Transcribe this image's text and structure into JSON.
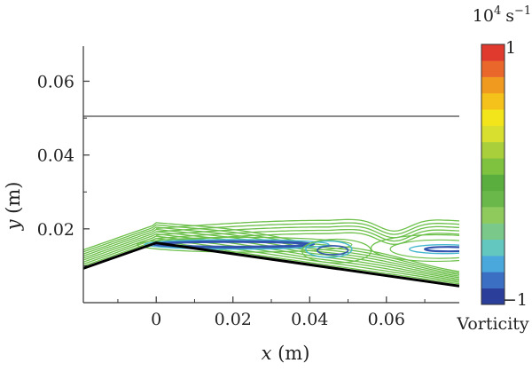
{
  "chart_data": {
    "type": "contour",
    "xlabel_var": "x",
    "xlabel_unit": " (m)",
    "ylabel_var": "y",
    "ylabel_unit": " (m)",
    "xlim": [
      -0.019,
      0.079
    ],
    "ylim": [
      0.0,
      0.0695
    ],
    "x_ticks": [
      0,
      0.02,
      0.04,
      0.06
    ],
    "x_tick_labels": [
      "0",
      "0.02",
      "0.04",
      "0.06"
    ],
    "y_ticks": [
      0.02,
      0.04,
      0.06
    ],
    "y_tick_labels": [
      "0.02",
      "0.04",
      "0.06"
    ],
    "boundary_y": 0.0505,
    "wedge_surface": [
      [
        -0.019,
        0.0093
      ],
      [
        0,
        0.0162
      ],
      [
        0.079,
        0.0045
      ]
    ],
    "colorbar": {
      "title_base": "10",
      "title_exp": "4",
      "title_unit": "s",
      "title_unit_exp": "−1",
      "max_label": "1",
      "min_label": "−1",
      "quantity": "Vorticity",
      "range": [
        -1,
        1
      ],
      "colors": [
        "#2a3e9a",
        "#3a6fc4",
        "#4aa8dc",
        "#63c7c0",
        "#7ac98a",
        "#8fcb5c",
        "#6ab84a",
        "#5aae3e",
        "#7ec23f",
        "#a9cf3a",
        "#d9df2e",
        "#f2e51c",
        "#f5c21b",
        "#f09a1f",
        "#e9672a",
        "#e03a2e"
      ]
    },
    "contour_colors": {
      "weak": "#6cc04a",
      "mid": "#45b8cf",
      "strong": "#3355b0"
    }
  }
}
